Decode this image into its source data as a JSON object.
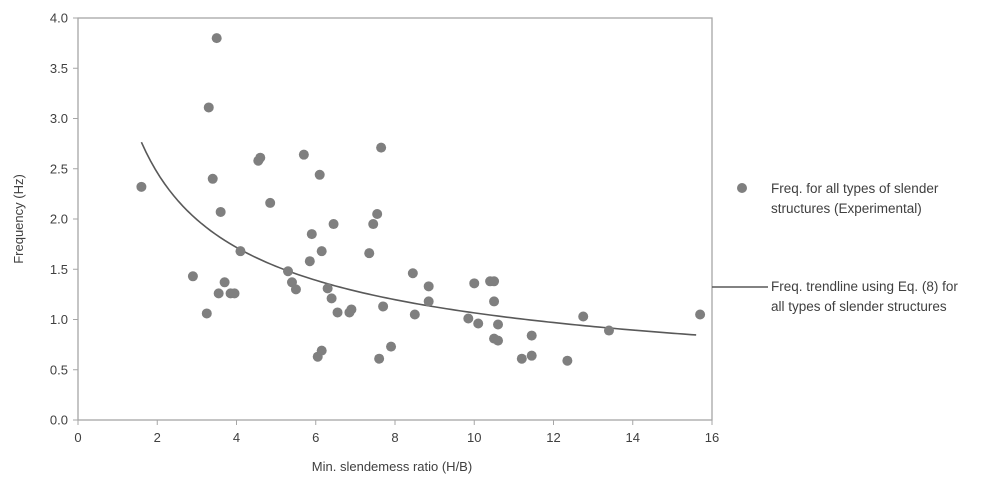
{
  "chart_data": {
    "type": "scatter",
    "xlabel": "Min. slendemess ratio (H/B)",
    "ylabel": "Frequency (Hz)",
    "xlim": [
      0,
      16
    ],
    "ylim": [
      0,
      4
    ],
    "x_ticks": [
      "0",
      "2",
      "4",
      "6",
      "8",
      "10",
      "12",
      "14",
      "16"
    ],
    "y_ticks": [
      "0.0",
      "0.5",
      "1.0",
      "1.5",
      "2.0",
      "2.5",
      "3.0",
      "3.5",
      "4.0"
    ],
    "grid": false,
    "legend_position": "right",
    "colors": {
      "points": "#7f7f7f",
      "trendline": "#595959",
      "frame": "#a6a6a6"
    },
    "series": [
      {
        "name": "Freq. for all types of slender structures (Experimental)",
        "kind": "scatter",
        "points": [
          [
            1.6,
            2.32
          ],
          [
            2.9,
            1.43
          ],
          [
            3.25,
            1.06
          ],
          [
            3.3,
            3.11
          ],
          [
            3.4,
            2.4
          ],
          [
            3.5,
            3.8
          ],
          [
            3.55,
            1.26
          ],
          [
            3.6,
            2.07
          ],
          [
            3.7,
            1.37
          ],
          [
            3.85,
            1.26
          ],
          [
            3.95,
            1.26
          ],
          [
            4.1,
            1.68
          ],
          [
            4.55,
            2.58
          ],
          [
            4.6,
            2.61
          ],
          [
            4.85,
            2.16
          ],
          [
            5.3,
            1.48
          ],
          [
            5.4,
            1.37
          ],
          [
            5.5,
            1.3
          ],
          [
            5.7,
            2.64
          ],
          [
            5.85,
            1.58
          ],
          [
            5.9,
            1.85
          ],
          [
            6.05,
            0.63
          ],
          [
            6.1,
            2.44
          ],
          [
            6.15,
            1.68
          ],
          [
            6.15,
            0.69
          ],
          [
            6.3,
            1.31
          ],
          [
            6.4,
            1.21
          ],
          [
            6.45,
            1.95
          ],
          [
            6.55,
            1.07
          ],
          [
            6.85,
            1.07
          ],
          [
            6.9,
            1.1
          ],
          [
            7.35,
            1.66
          ],
          [
            7.45,
            1.95
          ],
          [
            7.55,
            2.05
          ],
          [
            7.6,
            0.61
          ],
          [
            7.65,
            2.71
          ],
          [
            7.7,
            1.13
          ],
          [
            7.9,
            0.73
          ],
          [
            8.45,
            1.46
          ],
          [
            8.5,
            1.05
          ],
          [
            8.85,
            1.18
          ],
          [
            8.85,
            1.33
          ],
          [
            9.85,
            1.01
          ],
          [
            10.0,
            1.36
          ],
          [
            10.1,
            0.96
          ],
          [
            10.4,
            1.38
          ],
          [
            10.5,
            1.38
          ],
          [
            10.5,
            1.18
          ],
          [
            10.5,
            0.81
          ],
          [
            10.6,
            0.95
          ],
          [
            10.6,
            0.79
          ],
          [
            11.2,
            0.61
          ],
          [
            11.45,
            0.84
          ],
          [
            11.45,
            0.64
          ],
          [
            12.35,
            0.59
          ],
          [
            12.75,
            1.03
          ],
          [
            13.4,
            0.89
          ],
          [
            15.7,
            1.05
          ]
        ]
      },
      {
        "name": "Freq. trendline using Eq. (8) for all types of slender structures",
        "kind": "line",
        "x_range": [
          1.6,
          15.6
        ],
        "formula": {
          "a": 3.53,
          "b": -0.52
        }
      }
    ]
  }
}
